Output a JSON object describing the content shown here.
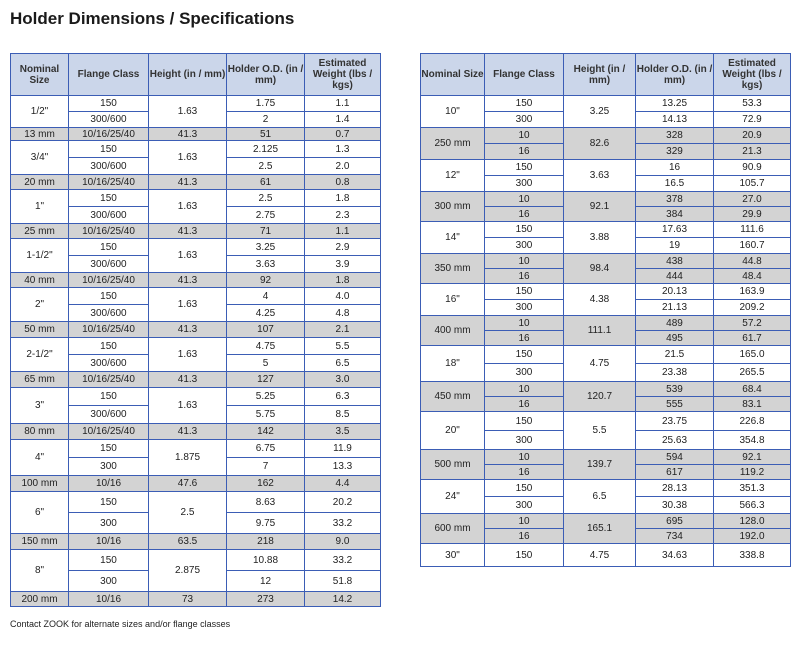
{
  "title": "Holder Dimensions / Specifications",
  "headers": [
    "Nominal Size",
    "Flange Class",
    "Height (in / mm)",
    "Holder O.D. (in / mm)",
    "Estimated Weight (lbs / kgs)"
  ],
  "left": [
    {
      "size": "1/2\"",
      "height": "1.63",
      "rows": [
        [
          "150",
          "1.75",
          "1.1"
        ],
        [
          "300/600",
          "2",
          "1.4"
        ]
      ]
    },
    {
      "size": "13 mm",
      "height": "41.3",
      "metric": true,
      "rows": [
        [
          "10/16/25/40",
          "51",
          "0.7"
        ]
      ]
    },
    {
      "size": "3/4\"",
      "height": "1.63",
      "rows": [
        [
          "150",
          "2.125",
          "1.3"
        ],
        [
          "300/600",
          "2.5",
          "2.0"
        ]
      ]
    },
    {
      "size": "20 mm",
      "height": "41.3",
      "metric": true,
      "rows": [
        [
          "10/16/25/40",
          "61",
          "0.8"
        ]
      ]
    },
    {
      "size": "1\"",
      "height": "1.63",
      "rows": [
        [
          "150",
          "2.5",
          "1.8"
        ],
        [
          "300/600",
          "2.75",
          "2.3"
        ]
      ]
    },
    {
      "size": "25 mm",
      "height": "41.3",
      "metric": true,
      "rows": [
        [
          "10/16/25/40",
          "71",
          "1.1"
        ]
      ]
    },
    {
      "size": "1-1/2\"",
      "height": "1.63",
      "rows": [
        [
          "150",
          "3.25",
          "2.9"
        ],
        [
          "300/600",
          "3.63",
          "3.9"
        ]
      ]
    },
    {
      "size": "40 mm",
      "height": "41.3",
      "metric": true,
      "rows": [
        [
          "10/16/25/40",
          "92",
          "1.8"
        ]
      ]
    },
    {
      "size": "2\"",
      "height": "1.63",
      "rows": [
        [
          "150",
          "4",
          "4.0"
        ],
        [
          "300/600",
          "4.25",
          "4.8"
        ]
      ]
    },
    {
      "size": "50 mm",
      "height": "41.3",
      "metric": true,
      "rows": [
        [
          "10/16/25/40",
          "107",
          "2.1"
        ]
      ]
    },
    {
      "size": "2-1/2\"",
      "height": "1.63",
      "rows": [
        [
          "150",
          "4.75",
          "5.5"
        ],
        [
          "300/600",
          "5",
          "6.5"
        ]
      ]
    },
    {
      "size": "65 mm",
      "height": "41.3",
      "metric": true,
      "rows": [
        [
          "10/16/25/40",
          "127",
          "3.0"
        ]
      ]
    },
    {
      "size": "3\"",
      "height": "1.63",
      "rows": [
        [
          "150",
          "5.25",
          "6.3"
        ],
        [
          "300/600",
          "5.75",
          "8.5"
        ]
      ]
    },
    {
      "size": "80 mm",
      "height": "41.3",
      "metric": true,
      "rows": [
        [
          "10/16/25/40",
          "142",
          "3.5"
        ]
      ]
    },
    {
      "size": "4\"",
      "height": "1.875",
      "rows": [
        [
          "150",
          "6.75",
          "11.9"
        ],
        [
          "300",
          "7",
          "13.3"
        ]
      ]
    },
    {
      "size": "100 mm",
      "height": "47.6",
      "metric": true,
      "rows": [
        [
          "10/16",
          "162",
          "4.4"
        ]
      ]
    },
    {
      "size": "6\"",
      "height": "2.5",
      "rows": [
        [
          "150",
          "8.63",
          "20.2"
        ],
        [
          "300",
          "9.75",
          "33.2"
        ]
      ]
    },
    {
      "size": "150 mm",
      "height": "63.5",
      "metric": true,
      "rows": [
        [
          "10/16",
          "218",
          "9.0"
        ]
      ]
    },
    {
      "size": "8\"",
      "height": "2.875",
      "rows": [
        [
          "150",
          "10.88",
          "33.2"
        ],
        [
          "300",
          "12",
          "51.8"
        ]
      ]
    },
    {
      "size": "200 mm",
      "height": "73",
      "metric": true,
      "rows": [
        [
          "10/16",
          "273",
          "14.2"
        ]
      ]
    }
  ],
  "right": [
    {
      "size": "10\"",
      "height": "3.25",
      "rows": [
        [
          "150",
          "13.25",
          "53.3"
        ],
        [
          "300",
          "14.13",
          "72.9"
        ]
      ]
    },
    {
      "size": "250 mm",
      "height": "82.6",
      "metric": true,
      "rows": [
        [
          "10",
          "328",
          "20.9"
        ],
        [
          "16",
          "329",
          "21.3"
        ]
      ]
    },
    {
      "size": "12\"",
      "height": "3.63",
      "rows": [
        [
          "150",
          "16",
          "90.9"
        ],
        [
          "300",
          "16.5",
          "105.7"
        ]
      ]
    },
    {
      "size": "300 mm",
      "height": "92.1",
      "metric": true,
      "rows": [
        [
          "10",
          "378",
          "27.0"
        ],
        [
          "16",
          "384",
          "29.9"
        ]
      ]
    },
    {
      "size": "14\"",
      "height": "3.88",
      "rows": [
        [
          "150",
          "17.63",
          "111.6"
        ],
        [
          "300",
          "19",
          "160.7"
        ]
      ]
    },
    {
      "size": "350 mm",
      "height": "98.4",
      "metric": true,
      "rows": [
        [
          "10",
          "438",
          "44.8"
        ],
        [
          "16",
          "444",
          "48.4"
        ]
      ]
    },
    {
      "size": "16\"",
      "height": "4.38",
      "rows": [
        [
          "150",
          "20.13",
          "163.9"
        ],
        [
          "300",
          "21.13",
          "209.2"
        ]
      ]
    },
    {
      "size": "400 mm",
      "height": "111.1",
      "metric": true,
      "rows": [
        [
          "10",
          "489",
          "57.2"
        ],
        [
          "16",
          "495",
          "61.7"
        ]
      ]
    },
    {
      "size": "18\"",
      "height": "4.75",
      "rows": [
        [
          "150",
          "21.5",
          "165.0"
        ],
        [
          "300",
          "23.38",
          "265.5"
        ]
      ]
    },
    {
      "size": "450 mm",
      "height": "120.7",
      "metric": true,
      "rows": [
        [
          "10",
          "539",
          "68.4"
        ],
        [
          "16",
          "555",
          "83.1"
        ]
      ]
    },
    {
      "size": "20\"",
      "height": "5.5",
      "rows": [
        [
          "150",
          "23.75",
          "226.8"
        ],
        [
          "300",
          "25.63",
          "354.8"
        ]
      ]
    },
    {
      "size": "500 mm",
      "height": "139.7",
      "metric": true,
      "rows": [
        [
          "10",
          "594",
          "92.1"
        ],
        [
          "16",
          "617",
          "119.2"
        ]
      ]
    },
    {
      "size": "24\"",
      "height": "6.5",
      "rows": [
        [
          "150",
          "28.13",
          "351.3"
        ],
        [
          "300",
          "30.38",
          "566.3"
        ]
      ]
    },
    {
      "size": "600 mm",
      "height": "165.1",
      "metric": true,
      "rows": [
        [
          "10",
          "695",
          "128.0"
        ],
        [
          "16",
          "734",
          "192.0"
        ]
      ]
    },
    {
      "size": "30\"",
      "height": "4.75",
      "rows": [
        [
          "150",
          "34.63",
          "338.8"
        ]
      ]
    }
  ],
  "note": "Contact ZOOK for alternate sizes and/or flange classes",
  "colors": {
    "border": "#3b5db5",
    "header_bg": "#cbd6ea",
    "metric_bg": "#d3d3d3"
  }
}
